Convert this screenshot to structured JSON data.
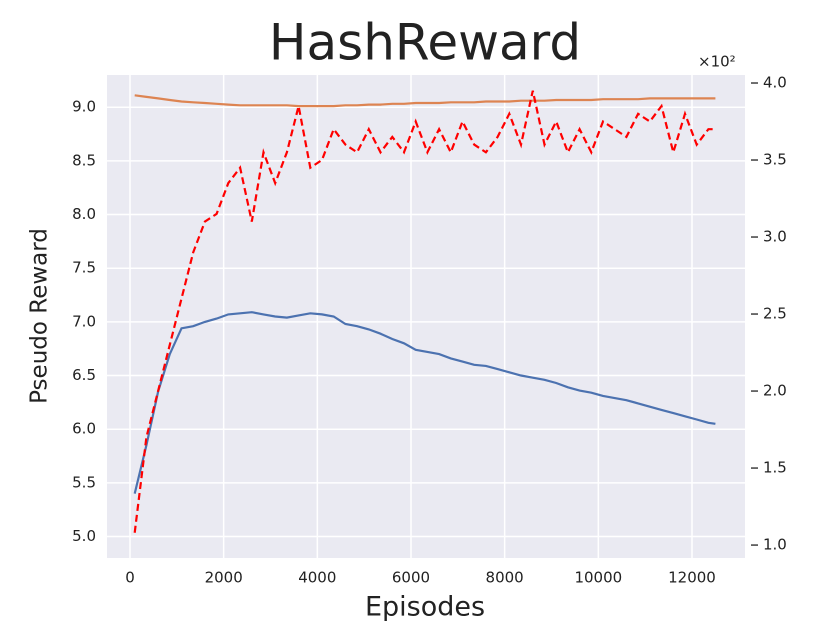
{
  "chart_data": {
    "type": "line",
    "title": "HashReward",
    "x_label": "Episodes",
    "y_label": "Pseudo Reward",
    "y2_offset_label": "×10²",
    "x": [
      100,
      350,
      600,
      850,
      1100,
      1350,
      1600,
      1850,
      2100,
      2350,
      2600,
      2850,
      3100,
      3350,
      3600,
      3850,
      4100,
      4350,
      4600,
      4850,
      5100,
      5350,
      5600,
      5850,
      6100,
      6350,
      6600,
      6850,
      7100,
      7350,
      7600,
      7850,
      8100,
      8350,
      8600,
      8850,
      9100,
      9350,
      9600,
      9850,
      10100,
      10350,
      10600,
      10850,
      11100,
      11350,
      11600,
      11850,
      12100,
      12350,
      12500
    ],
    "series": [
      {
        "color": "#4c72b0",
        "dashed": false,
        "axis": "y",
        "values": [
          5.4,
          5.85,
          6.35,
          6.7,
          6.94,
          6.96,
          7.0,
          7.03,
          7.07,
          7.08,
          7.09,
          7.07,
          7.05,
          7.04,
          7.06,
          7.08,
          7.07,
          7.05,
          6.98,
          6.96,
          6.93,
          6.89,
          6.84,
          6.8,
          6.74,
          6.72,
          6.7,
          6.66,
          6.63,
          6.6,
          6.59,
          6.56,
          6.53,
          6.5,
          6.48,
          6.46,
          6.43,
          6.39,
          6.36,
          6.34,
          6.31,
          6.29,
          6.27,
          6.24,
          6.21,
          6.18,
          6.15,
          6.12,
          6.09,
          6.06,
          6.05
        ]
      },
      {
        "color": "#dd8452",
        "dashed": false,
        "axis": "y2",
        "values": [
          3.92,
          3.91,
          3.9,
          3.89,
          3.88,
          3.875,
          3.87,
          3.865,
          3.86,
          3.855,
          3.855,
          3.855,
          3.855,
          3.855,
          3.85,
          3.85,
          3.85,
          3.85,
          3.855,
          3.855,
          3.86,
          3.86,
          3.865,
          3.865,
          3.87,
          3.87,
          3.87,
          3.875,
          3.875,
          3.875,
          3.88,
          3.88,
          3.88,
          3.885,
          3.885,
          3.885,
          3.89,
          3.89,
          3.89,
          3.89,
          3.895,
          3.895,
          3.895,
          3.895,
          3.9,
          3.9,
          3.9,
          3.9,
          3.9,
          3.9,
          3.9
        ]
      },
      {
        "color": "#ff0000",
        "dashed": true,
        "axis": "y2",
        "values": [
          1.08,
          1.7,
          2.0,
          2.3,
          2.6,
          2.9,
          3.1,
          3.15,
          3.35,
          3.45,
          3.1,
          3.55,
          3.35,
          3.55,
          3.85,
          3.45,
          3.5,
          3.7,
          3.6,
          3.55,
          3.7,
          3.55,
          3.65,
          3.55,
          3.75,
          3.55,
          3.7,
          3.55,
          3.75,
          3.6,
          3.55,
          3.65,
          3.8,
          3.6,
          3.95,
          3.6,
          3.75,
          3.55,
          3.7,
          3.55,
          3.75,
          3.7,
          3.65,
          3.8,
          3.75,
          3.85,
          3.55,
          3.8,
          3.6,
          3.7,
          3.7
        ]
      }
    ],
    "xlim": [
      -491,
      13132
    ],
    "xticks": [
      0,
      2000,
      4000,
      6000,
      8000,
      10000,
      12000
    ],
    "ylim": [
      4.8,
      9.3
    ],
    "yticks": [
      {
        "value": 5,
        "label": "5.0"
      },
      {
        "value": 5.5,
        "label": "5.5"
      },
      {
        "value": 6,
        "label": "6.0"
      },
      {
        "value": 6.5,
        "label": "6.5"
      },
      {
        "value": 7,
        "label": "7.0"
      },
      {
        "value": 7.5,
        "label": "7.5"
      },
      {
        "value": 8,
        "label": "8.0"
      },
      {
        "value": 8.5,
        "label": "8.5"
      },
      {
        "value": 9,
        "label": "9.0"
      }
    ],
    "y2lim": [
      0.916,
      4.052
    ],
    "y2ticks": [
      {
        "value": 1,
        "label": "1.0"
      },
      {
        "value": 1.5,
        "label": "1.5"
      },
      {
        "value": 2,
        "label": "2.0"
      },
      {
        "value": 2.5,
        "label": "2.5"
      },
      {
        "value": 3,
        "label": "3.0"
      },
      {
        "value": 3.5,
        "label": "3.5"
      },
      {
        "value": 4,
        "label": "4.0"
      }
    ],
    "grid": true
  }
}
